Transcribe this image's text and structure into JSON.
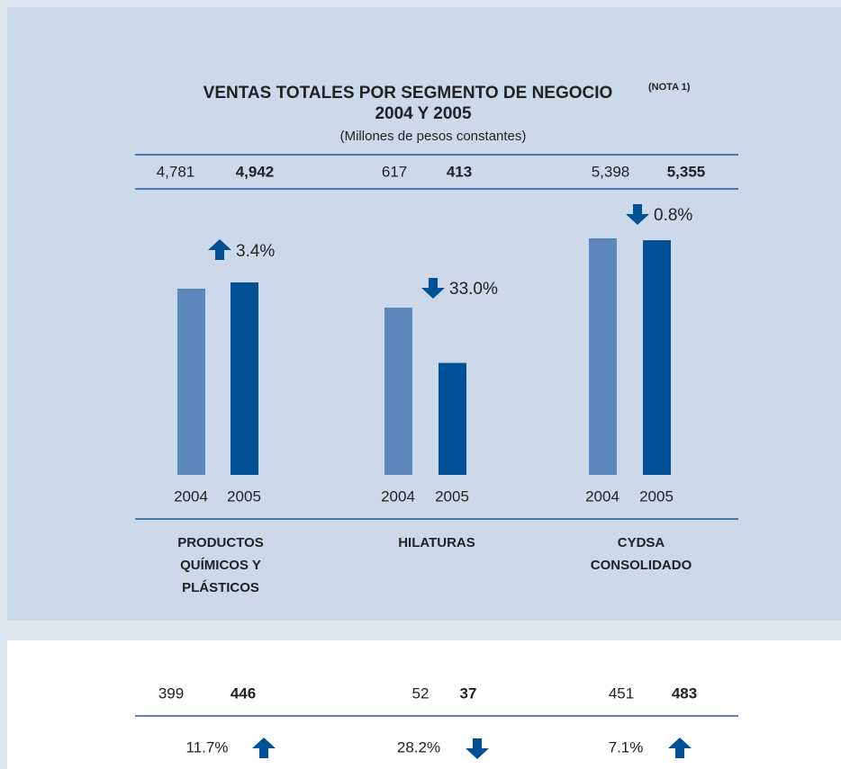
{
  "chart_data": {
    "type": "bar",
    "title": "VENTAS TOTALES POR SEGMENTO DE NEGOCIO",
    "title_note": "(NOTA 1)",
    "title_line2": "2004 Y 2005",
    "subtitle": "(Millones de pesos constantes)",
    "series_colors": [
      "#5b87bb",
      "#005195"
    ],
    "groups": [
      {
        "label": [
          "PRODUCTOS",
          "QUÍMICOS Y",
          "PLÁSTICOS"
        ],
        "years": [
          "2004",
          "2005"
        ],
        "values": [
          4781,
          4942
        ],
        "value_labels": [
          "4,781",
          "4,942"
        ],
        "change": "3.4%",
        "direction": "up"
      },
      {
        "label": [
          "HILATURAS"
        ],
        "years": [
          "2004",
          "2005"
        ],
        "values": [
          617,
          413
        ],
        "value_labels": [
          "617",
          "413"
        ],
        "change": "33.0%",
        "direction": "down"
      },
      {
        "label": [
          "CYDSA",
          "CONSOLIDADO"
        ],
        "years": [
          "2004",
          "2005"
        ],
        "values": [
          5398,
          5355
        ],
        "value_labels": [
          "5,398",
          "5,355"
        ],
        "change": "0.8%",
        "direction": "down"
      }
    ],
    "bottom": [
      {
        "values": [
          399,
          446
        ],
        "change": "11.7%",
        "direction": "up"
      },
      {
        "values": [
          52,
          37
        ],
        "change": "28.2%",
        "direction": "down"
      },
      {
        "values": [
          451,
          483
        ],
        "change": "7.1%",
        "direction": "up"
      }
    ]
  }
}
